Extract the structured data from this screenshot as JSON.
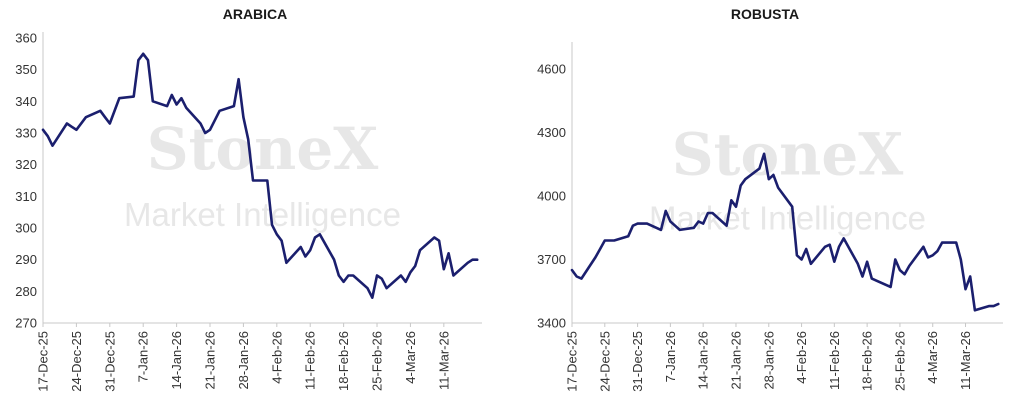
{
  "watermark": {
    "line1": "StoneX",
    "line2": "Market Intelligence"
  },
  "colors": {
    "line": "#1b1f6e",
    "axis": "#c8c8c8",
    "text": "#333333",
    "watermark": "#e7e7e7"
  },
  "chart_data": [
    {
      "type": "line",
      "title": "ARABICA",
      "xlabel": "",
      "ylabel": "",
      "ylim": [
        270,
        360
      ],
      "yticks": [
        270,
        280,
        290,
        300,
        310,
        320,
        330,
        340,
        350,
        360
      ],
      "xlim": [
        "2025-12-17",
        "2026-03-19"
      ],
      "xtick_dates": [
        "2025-12-17",
        "2025-12-24",
        "2025-12-31",
        "2026-01-07",
        "2026-01-14",
        "2026-01-21",
        "2026-01-28",
        "2026-02-04",
        "2026-02-11",
        "2026-02-18",
        "2026-02-25",
        "2026-03-04",
        "2026-03-11"
      ],
      "xtick_labels": [
        "17-Dec-25",
        "24-Dec-25",
        "31-Dec-25",
        "7-Jan-26",
        "14-Jan-26",
        "21-Jan-26",
        "28-Jan-26",
        "4-Feb-26",
        "11-Feb-26",
        "18-Feb-26",
        "25-Feb-26",
        "4-Mar-26",
        "11-Mar-26"
      ],
      "grid": false,
      "series": [
        {
          "x": [
            "2025-12-17",
            "2025-12-18",
            "2025-12-19",
            "2025-12-22",
            "2025-12-23",
            "2025-12-24",
            "2025-12-26",
            "2025-12-29",
            "2025-12-30",
            "2025-12-31",
            "2026-01-02",
            "2026-01-05",
            "2026-01-06",
            "2026-01-07",
            "2026-01-08",
            "2026-01-09",
            "2026-01-12",
            "2026-01-13",
            "2026-01-14",
            "2026-01-15",
            "2026-01-16",
            "2026-01-19",
            "2026-01-20",
            "2026-01-21",
            "2026-01-22",
            "2026-01-23",
            "2026-01-26",
            "2026-01-27",
            "2026-01-28",
            "2026-01-29",
            "2026-01-30",
            "2026-02-02",
            "2026-02-03",
            "2026-02-04",
            "2026-02-05",
            "2026-02-06",
            "2026-02-09",
            "2026-02-10",
            "2026-02-11",
            "2026-02-12",
            "2026-02-13",
            "2026-02-16",
            "2026-02-17",
            "2026-02-18",
            "2026-02-19",
            "2026-02-20",
            "2026-02-23",
            "2026-02-24",
            "2026-02-25",
            "2026-02-26",
            "2026-02-27",
            "2026-03-02",
            "2026-03-03",
            "2026-03-04",
            "2026-03-05",
            "2026-03-06",
            "2026-03-09",
            "2026-03-10",
            "2026-03-11",
            "2026-03-12",
            "2026-03-13",
            "2026-03-16",
            "2026-03-17",
            "2026-03-18"
          ],
          "values": [
            331,
            329,
            326,
            333,
            332,
            331,
            335,
            337,
            335,
            333,
            341,
            341.5,
            353,
            355,
            353,
            340,
            338.5,
            342,
            339,
            341,
            338,
            333,
            330,
            331,
            334,
            337,
            338.5,
            347,
            335,
            328,
            315,
            315,
            301,
            298,
            296,
            289,
            294,
            291,
            293,
            297,
            298,
            290,
            285,
            283,
            285,
            285,
            281,
            278,
            285,
            284,
            281,
            285,
            283,
            286,
            288,
            293,
            297,
            296,
            287,
            292,
            285,
            289,
            290,
            290
          ]
        }
      ]
    },
    {
      "type": "line",
      "title": "ROBUSTA",
      "xlabel": "",
      "ylabel": "",
      "ylim": [
        3400,
        4700
      ],
      "yticks": [
        3400,
        3700,
        4000,
        4300,
        4600
      ],
      "xlim": [
        "2025-12-17",
        "2026-03-19"
      ],
      "xtick_dates": [
        "2025-12-17",
        "2025-12-24",
        "2025-12-31",
        "2026-01-07",
        "2026-01-14",
        "2026-01-21",
        "2026-01-28",
        "2026-02-04",
        "2026-02-11",
        "2026-02-18",
        "2026-02-25",
        "2026-03-04",
        "2026-03-11"
      ],
      "xtick_labels": [
        "17-Dec-25",
        "24-Dec-25",
        "31-Dec-25",
        "7-Jan-26",
        "14-Jan-26",
        "21-Jan-26",
        "28-Jan-26",
        "4-Feb-26",
        "11-Feb-26",
        "18-Feb-26",
        "25-Feb-26",
        "4-Mar-26",
        "11-Mar-26"
      ],
      "grid": false,
      "series": [
        {
          "x": [
            "2025-12-17",
            "2025-12-18",
            "2025-12-19",
            "2025-12-22",
            "2025-12-23",
            "2025-12-24",
            "2025-12-26",
            "2025-12-29",
            "2025-12-30",
            "2025-12-31",
            "2026-01-02",
            "2026-01-05",
            "2026-01-06",
            "2026-01-07",
            "2026-01-08",
            "2026-01-09",
            "2026-01-12",
            "2026-01-13",
            "2026-01-14",
            "2026-01-15",
            "2026-01-16",
            "2026-01-19",
            "2026-01-20",
            "2026-01-21",
            "2026-01-22",
            "2026-01-23",
            "2026-01-26",
            "2026-01-27",
            "2026-01-28",
            "2026-01-29",
            "2026-01-30",
            "2026-02-02",
            "2026-02-03",
            "2026-02-04",
            "2026-02-05",
            "2026-02-06",
            "2026-02-09",
            "2026-02-10",
            "2026-02-11",
            "2026-02-12",
            "2026-02-13",
            "2026-02-16",
            "2026-02-17",
            "2026-02-18",
            "2026-02-19",
            "2026-02-20",
            "2026-02-23",
            "2026-02-24",
            "2026-02-25",
            "2026-02-26",
            "2026-02-27",
            "2026-03-02",
            "2026-03-03",
            "2026-03-04",
            "2026-03-05",
            "2026-03-06",
            "2026-03-09",
            "2026-03-10",
            "2026-03-11",
            "2026-03-12",
            "2026-03-13",
            "2026-03-16",
            "2026-03-17",
            "2026-03-18"
          ],
          "values": [
            3650,
            3620,
            3610,
            3710,
            3750,
            3790,
            3790,
            3810,
            3860,
            3870,
            3870,
            3840,
            3930,
            3880,
            3860,
            3840,
            3850,
            3880,
            3870,
            3920,
            3920,
            3860,
            3980,
            3950,
            4050,
            4080,
            4130,
            4200,
            4080,
            4100,
            4040,
            3950,
            3720,
            3700,
            3750,
            3680,
            3760,
            3770,
            3690,
            3760,
            3800,
            3680,
            3620,
            3690,
            3610,
            3600,
            3570,
            3700,
            3650,
            3630,
            3670,
            3760,
            3710,
            3720,
            3740,
            3780,
            3780,
            3700,
            3560,
            3620,
            3460,
            3480,
            3480,
            3490
          ]
        }
      ]
    }
  ]
}
